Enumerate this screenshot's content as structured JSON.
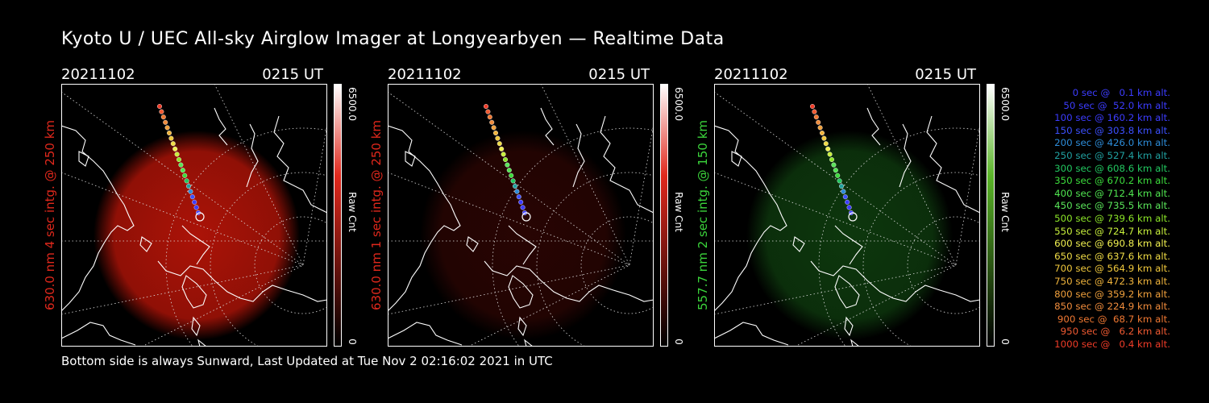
{
  "header": {
    "title": "Kyoto U / UEC All-sky Airglow Imager at Longyearbyen — Realtime Data"
  },
  "footer": {
    "text": "Bottom side is always Sunward, Last Updated at Tue Nov  2 02:16:02 2021 in UTC"
  },
  "panels": [
    {
      "date": "20211102",
      "time": "0215 UT",
      "side_label": "630.0 nm 4 sec intg. @ 250 km",
      "colorbar_max": "6500.0",
      "colorbar_unit": "Raw Cnt",
      "colorbar_min": "0",
      "color": "#e0281c",
      "glow": "#b41408"
    },
    {
      "date": "20211102",
      "time": "0215 UT",
      "side_label": "630.0 nm 1 sec intg. @ 250 km",
      "colorbar_max": "6500.0",
      "colorbar_unit": "Raw Cnt",
      "colorbar_min": "0",
      "color": "#e0281c",
      "glow": "#2a0503"
    },
    {
      "date": "20211102",
      "time": "0215 UT",
      "side_label": "557.7 nm 2 sec intg. @ 150 km",
      "colorbar_max": "6500.0",
      "colorbar_unit": "Raw Cnt",
      "colorbar_min": "0",
      "color": "#3bd43b",
      "glow": "#0e3a0e"
    }
  ],
  "legend": [
    {
      "text": "0 sec @   0.1 km alt.",
      "color": "#3c3cff"
    },
    {
      "text": "50 sec @  52.0 km alt.",
      "color": "#3c3cff"
    },
    {
      "text": "100 sec @ 160.2 km alt.",
      "color": "#3c3cff"
    },
    {
      "text": "150 sec @ 303.8 km alt.",
      "color": "#3c50ff"
    },
    {
      "text": "200 sec @ 426.0 km alt.",
      "color": "#2d8cd8"
    },
    {
      "text": "250 sec @ 527.4 km alt.",
      "color": "#20a0a0"
    },
    {
      "text": "300 sec @ 608.6 km alt.",
      "color": "#22c860"
    },
    {
      "text": "350 sec @ 670.2 km alt.",
      "color": "#3cdc3c"
    },
    {
      "text": "400 sec @ 712.4 km alt.",
      "color": "#50e650"
    },
    {
      "text": "450 sec @ 735.5 km alt.",
      "color": "#5ae65a"
    },
    {
      "text": "500 sec @ 739.6 km alt.",
      "color": "#8ce628"
    },
    {
      "text": "550 sec @ 724.7 km alt.",
      "color": "#c8f03c"
    },
    {
      "text": "600 sec @ 690.8 km alt.",
      "color": "#f0f050"
    },
    {
      "text": "650 sec @ 637.6 km alt.",
      "color": "#f0dc46"
    },
    {
      "text": "700 sec @ 564.9 km alt.",
      "color": "#f0c83c"
    },
    {
      "text": "750 sec @ 472.3 km alt.",
      "color": "#f0b43c"
    },
    {
      "text": "800 sec @ 359.2 km alt.",
      "color": "#f0a03c"
    },
    {
      "text": "850 sec @ 224.9 km alt.",
      "color": "#f08c3c"
    },
    {
      "text": "900 sec @  68.7 km alt.",
      "color": "#f07832"
    },
    {
      "text": "950 sec @   6.2 km alt.",
      "color": "#f05a32"
    },
    {
      "text": "1000 sec @   0.4 km alt.",
      "color": "#f03c28"
    }
  ]
}
